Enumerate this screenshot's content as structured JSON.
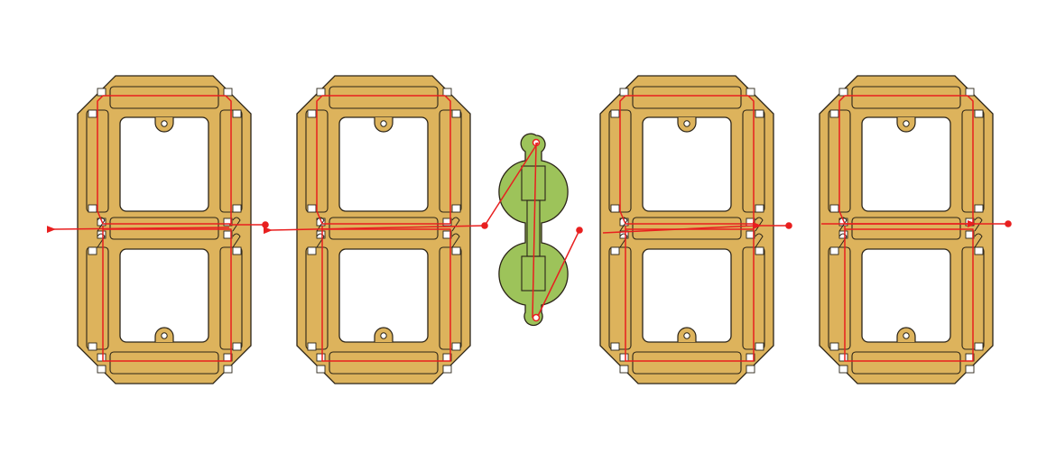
{
  "diagram": {
    "title": "",
    "description_visible_text": "",
    "colors": {
      "digit_fill": "#ddb35c",
      "digit_segment_highlight": "#e8c87a",
      "colon_fill": "#9dc35a",
      "colon_highlight": "#b8d67a",
      "wire": "#e81f1f",
      "outline": "#2b2418"
    },
    "icons": {
      "digit_frame": "seven-segment-digit-frame",
      "colon_frame": "colon-separator-frame",
      "data_flow_arrow": "arrow-left-icon",
      "junction": "solder-point"
    },
    "components": [
      {
        "kind": "digit",
        "position": 1
      },
      {
        "kind": "digit",
        "position": 2
      },
      {
        "kind": "colon",
        "position": 3
      },
      {
        "kind": "digit",
        "position": 4
      },
      {
        "kind": "digit",
        "position": 5
      }
    ],
    "data_flow_direction": "right-to-left"
  }
}
